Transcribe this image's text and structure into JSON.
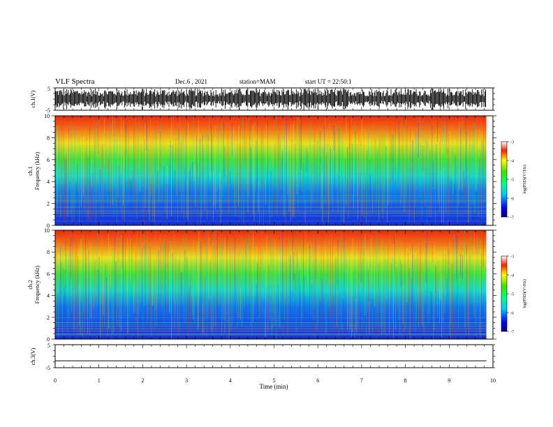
{
  "header": {
    "title": "VLF Spectra",
    "date": "Dec.6 , 2021",
    "station": "station=MAM",
    "start": "start UT = 22:50:1"
  },
  "chart_data": [
    {
      "type": "line",
      "panel": "ch1-waveform",
      "ylabel": "ch.1(V)",
      "ylim": [
        -5,
        5
      ],
      "yticks": [
        "5",
        "-5"
      ],
      "xlim": [
        0,
        10
      ]
    },
    {
      "type": "heatmap",
      "panel": "ch1-spectrogram",
      "ylabel_line1": "ch.1",
      "ylabel_line2": "Frequency (kHz)",
      "ylim": [
        0,
        10
      ],
      "yticks": [
        "0",
        "2",
        "4",
        "6",
        "8",
        "10"
      ],
      "xlim": [
        0,
        10
      ],
      "data_extent_min": 9.85,
      "colorbar": {
        "label": "log(PSD)(V²/Hz)",
        "range": [
          -7,
          -3
        ],
        "ticks": [
          "-3",
          "-4",
          "-5",
          "-6",
          "-7"
        ]
      }
    },
    {
      "type": "heatmap",
      "panel": "ch2-spectrogram",
      "ylabel_line1": "ch.2",
      "ylabel_line2": "Frequency (kHz)",
      "ylim": [
        0,
        10
      ],
      "yticks": [
        "0",
        "2",
        "4",
        "6",
        "8",
        "10"
      ],
      "xlim": [
        0,
        10
      ],
      "data_extent_min": 9.85,
      "colorbar": {
        "label": "log(PSD)(V²/Hz)",
        "range": [
          -7,
          -3
        ],
        "ticks": [
          "-3",
          "-4",
          "-5",
          "-6",
          "-7"
        ]
      }
    },
    {
      "type": "line",
      "panel": "ch3-waveform",
      "ylabel": "ch.3(V)",
      "ylim": [
        -5,
        5
      ],
      "yticks": [
        "5",
        "-5"
      ],
      "xlim": [
        0,
        10
      ],
      "values_constant": -2.0
    }
  ],
  "xaxis": {
    "label": "Time (min)",
    "ticks": [
      "0",
      "1",
      "2",
      "3",
      "4",
      "5",
      "6",
      "7",
      "8",
      "9",
      "10"
    ]
  }
}
